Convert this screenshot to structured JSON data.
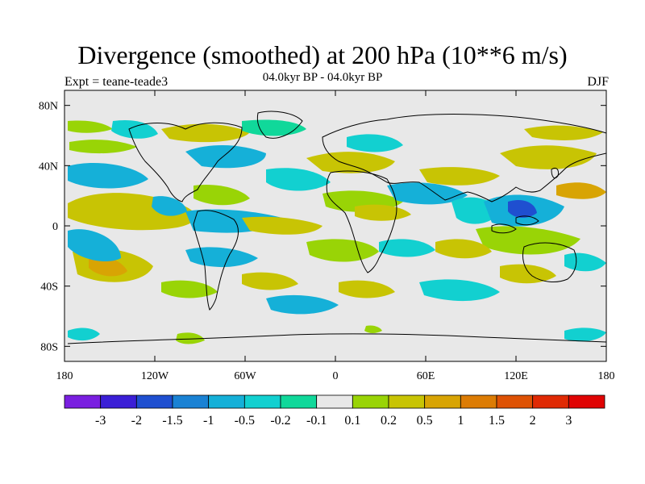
{
  "chart_data": {
    "type": "heatmap",
    "title": "Divergence (smoothed) at 200 hPa (10**6 m/s)",
    "left_string": "Expt = teane-teade3",
    "center_string": "04.0kyr BP - 04.0kyr BP",
    "right_string": "DJF",
    "x_ticks": [
      "180",
      "120W",
      "60W",
      "0",
      "60E",
      "120E",
      "180"
    ],
    "y_ticks": [
      "80N",
      "40N",
      "0",
      "40S",
      "80S"
    ],
    "xlim": [
      -180,
      180
    ],
    "ylim": [
      -90,
      90
    ],
    "colorbar": {
      "labels": [
        "-3",
        "-2",
        "-1.5",
        "-1",
        "-0.5",
        "-0.2",
        "-0.1",
        "0.1",
        "0.2",
        "0.5",
        "1",
        "1.5",
        "2",
        "3"
      ],
      "colors": [
        "#7a1fe0",
        "#3b1fd6",
        "#1f4fd0",
        "#1a82d4",
        "#15b0d8",
        "#12d0d0",
        "#10d89a",
        "#e8e8e8",
        "#99d406",
        "#c8c404",
        "#d8a404",
        "#dc7c04",
        "#de5204",
        "#e02a04",
        "#e00404"
      ]
    }
  }
}
